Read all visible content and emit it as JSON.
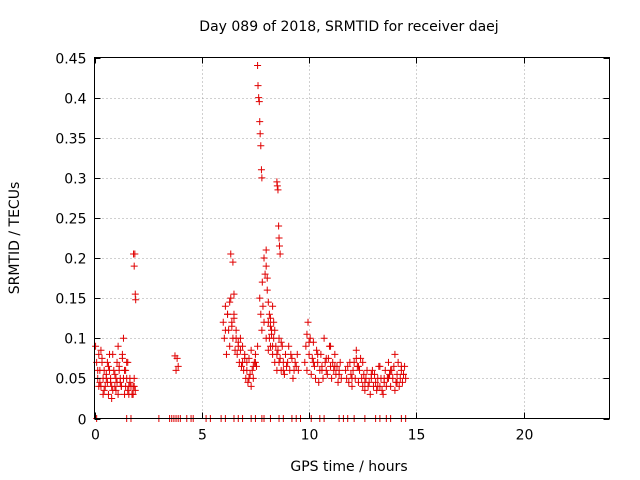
{
  "chart_data": {
    "type": "scatter",
    "title": "Day 089 of 2018, SRMTID for receiver daej",
    "xlabel": "GPS time / hours",
    "ylabel": "SRMTID / TECUs",
    "xlim": [
      0,
      24
    ],
    "ylim": [
      0,
      0.45
    ],
    "xticks": [
      0,
      5,
      10,
      15,
      20
    ],
    "yticks": [
      0,
      0.05,
      0.1,
      0.15,
      0.2,
      0.25,
      0.3,
      0.35,
      0.4,
      0.45
    ],
    "grid": true,
    "legend": "none",
    "marker": "+",
    "color": "#e00000",
    "series": [
      {
        "x": [
          0.05,
          0.1,
          0.15,
          0.2,
          0.25,
          0.3,
          0.35,
          0.4,
          0.45,
          0.5,
          0.55,
          0.6,
          0.65,
          0.7,
          0.75,
          0.8,
          0.85,
          0.9,
          0.95,
          1.0,
          1.05,
          1.1,
          1.15,
          1.2,
          1.25,
          1.3,
          1.35,
          1.4,
          1.45,
          1.5,
          1.55,
          1.6,
          1.65,
          1.7,
          1.75,
          1.8,
          1.85,
          1.9,
          0.15,
          0.25,
          0.35,
          0.45,
          0.55,
          0.65,
          0.75,
          0.85,
          0.95,
          1.05,
          1.15,
          1.25,
          1.35,
          1.45,
          1.55,
          1.65,
          1.75,
          1.85,
          0.2,
          0.4,
          0.6,
          0.8,
          1.0,
          1.2,
          1.4,
          1.6,
          1.8,
          0.3,
          0.7,
          1.1,
          1.3,
          1.5,
          1.82,
          1.85,
          1.88,
          1.9,
          1.92,
          3.75,
          3.8,
          3.85,
          3.9,
          6.0,
          6.05,
          6.1,
          6.15,
          6.2,
          6.25,
          6.3,
          6.35,
          6.4,
          6.45,
          6.5,
          6.55,
          6.6,
          6.65,
          6.7,
          6.75,
          6.8,
          6.85,
          6.9,
          6.95,
          7.0,
          7.05,
          7.1,
          7.15,
          7.2,
          7.25,
          7.3,
          7.35,
          7.4,
          7.45,
          7.5,
          7.55,
          7.6,
          6.1,
          6.3,
          6.5,
          6.7,
          6.9,
          7.1,
          7.3,
          7.5,
          6.2,
          6.4,
          6.6,
          6.8,
          7.0,
          7.2,
          7.4,
          6.35,
          6.45,
          6.5,
          7.6,
          7.62,
          7.65,
          7.68,
          7.7,
          7.72,
          7.75,
          7.78,
          7.8,
          7.82,
          7.7,
          7.75,
          7.8,
          7.85,
          7.9,
          7.95,
          8.0,
          8.05,
          8.1,
          8.15,
          8.2,
          8.25,
          8.3,
          8.35,
          8.4,
          8.45,
          8.5,
          8.55,
          8.6,
          8.65,
          8.7,
          8.75,
          8.8,
          8.85,
          8.9,
          8.95,
          9.0,
          9.05,
          9.1,
          9.15,
          9.2,
          9.25,
          9.3,
          9.35,
          9.4,
          9.45,
          9.5,
          7.9,
          8.0,
          8.1,
          8.2,
          8.3,
          8.4,
          8.5,
          8.6,
          8.7,
          8.8,
          8.0,
          8.05,
          8.1,
          8.15,
          8.2,
          8.25,
          8.3,
          8.35,
          8.5,
          8.52,
          8.55,
          8.58,
          8.6,
          8.62,
          8.65,
          9.8,
          9.85,
          9.9,
          9.95,
          10.0,
          10.05,
          10.1,
          10.15,
          10.2,
          10.25,
          10.3,
          10.35,
          10.4,
          10.45,
          10.5,
          10.55,
          10.6,
          10.65,
          10.7,
          10.75,
          10.8,
          10.85,
          10.9,
          10.95,
          11.0,
          11.05,
          11.1,
          11.15,
          11.2,
          11.25,
          11.3,
          11.35,
          11.4,
          11.45,
          11.5,
          9.9,
          10.0,
          10.2,
          10.4,
          10.6,
          10.8,
          11.0,
          11.2,
          11.4,
          11.7,
          11.75,
          11.8,
          11.85,
          11.9,
          11.95,
          12.0,
          12.05,
          12.1,
          12.15,
          12.2,
          12.25,
          12.3,
          12.35,
          12.4,
          12.45,
          12.5,
          12.55,
          12.6,
          12.65,
          12.7,
          12.75,
          12.8,
          12.85,
          12.9,
          12.95,
          13.0,
          13.05,
          13.1,
          13.15,
          13.2,
          13.25,
          13.3,
          13.35,
          13.4,
          13.45,
          13.5,
          13.55,
          13.6,
          13.65,
          13.7,
          13.75,
          13.8,
          13.85,
          13.9,
          13.95,
          14.0,
          14.05,
          14.1,
          14.15,
          14.2,
          14.25,
          14.3,
          14.35,
          14.4,
          14.45,
          14.5,
          12.0,
          12.3,
          12.6,
          12.9,
          13.2,
          13.5,
          13.8,
          14.1,
          14.4,
          12.2,
          12.5,
          13.3,
          13.7,
          14.0,
          14.3,
          0.1,
          1.5,
          1.7,
          3.0,
          3.5,
          3.6,
          3.7,
          3.8,
          3.9,
          4.0,
          4.3,
          4.5,
          4.6,
          5.2,
          5.4,
          5.9,
          6.1,
          6.5,
          6.7,
          6.9,
          7.3,
          7.5,
          7.8,
          7.9,
          8.2,
          8.6,
          8.8,
          9.2,
          9.4,
          9.6,
          10.1,
          10.5,
          10.7,
          11.4,
          11.6,
          11.8,
          12.1,
          12.6,
          13.1,
          13.3,
          13.6,
          13.8,
          14.3,
          14.5
        ],
        "y": [
          0.09,
          0.07,
          0.05,
          0.08,
          0.06,
          0.04,
          0.07,
          0.05,
          0.06,
          0.04,
          0.05,
          0.07,
          0.03,
          0.06,
          0.05,
          0.04,
          0.08,
          0.06,
          0.04,
          0.05,
          0.07,
          0.03,
          0.06,
          0.05,
          0.04,
          0.08,
          0.1,
          0.06,
          0.04,
          0.05,
          0.07,
          0.03,
          0.05,
          0.04,
          0.03,
          0.04,
          0.05,
          0.035,
          0.06,
          0.045,
          0.075,
          0.035,
          0.055,
          0.065,
          0.045,
          0.035,
          0.055,
          0.045,
          0.065,
          0.04,
          0.05,
          0.06,
          0.035,
          0.045,
          0.03,
          0.04,
          0.04,
          0.03,
          0.045,
          0.025,
          0.035,
          0.045,
          0.03,
          0.04,
          0.03,
          0.085,
          0.08,
          0.09,
          0.075,
          0.07,
          0.205,
          0.19,
          0.205,
          0.155,
          0.148,
          0.078,
          0.06,
          0.075,
          0.065,
          0.12,
          0.1,
          0.14,
          0.08,
          0.13,
          0.11,
          0.09,
          0.15,
          0.12,
          0.1,
          0.13,
          0.085,
          0.11,
          0.08,
          0.095,
          0.07,
          0.1,
          0.065,
          0.09,
          0.06,
          0.08,
          0.05,
          0.07,
          0.045,
          0.075,
          0.055,
          0.085,
          0.06,
          0.05,
          0.07,
          0.08,
          0.065,
          0.09,
          0.11,
          0.145,
          0.125,
          0.09,
          0.07,
          0.06,
          0.04,
          0.07,
          0.13,
          0.115,
          0.1,
          0.085,
          0.075,
          0.05,
          0.065,
          0.205,
          0.195,
          0.155,
          0.44,
          0.415,
          0.4,
          0.395,
          0.37,
          0.355,
          0.34,
          0.31,
          0.3,
          0.17,
          0.15,
          0.13,
          0.11,
          0.14,
          0.2,
          0.18,
          0.21,
          0.16,
          0.12,
          0.1,
          0.09,
          0.11,
          0.08,
          0.1,
          0.07,
          0.09,
          0.06,
          0.085,
          0.1,
          0.075,
          0.06,
          0.09,
          0.07,
          0.055,
          0.08,
          0.065,
          0.07,
          0.09,
          0.06,
          0.08,
          0.075,
          0.05,
          0.06,
          0.07,
          0.065,
          0.08,
          0.06,
          0.12,
          0.1,
          0.085,
          0.125,
          0.09,
          0.11,
          0.08,
          0.07,
          0.095,
          0.06,
          0.19,
          0.175,
          0.145,
          0.13,
          0.115,
          0.105,
          0.14,
          0.12,
          0.295,
          0.29,
          0.285,
          0.24,
          0.225,
          0.215,
          0.205,
          0.07,
          0.09,
          0.06,
          0.12,
          0.08,
          0.1,
          0.055,
          0.075,
          0.095,
          0.065,
          0.05,
          0.085,
          0.07,
          0.045,
          0.06,
          0.08,
          0.065,
          0.05,
          0.1,
          0.07,
          0.06,
          0.055,
          0.075,
          0.09,
          0.065,
          0.05,
          0.07,
          0.06,
          0.08,
          0.055,
          0.065,
          0.045,
          0.06,
          0.07,
          0.05,
          0.105,
          0.095,
          0.07,
          0.08,
          0.06,
          0.075,
          0.09,
          0.065,
          0.055,
          0.06,
          0.05,
          0.065,
          0.045,
          0.07,
          0.055,
          0.04,
          0.06,
          0.07,
          0.05,
          0.085,
          0.065,
          0.045,
          0.06,
          0.075,
          0.05,
          0.04,
          0.055,
          0.035,
          0.05,
          0.06,
          0.04,
          0.045,
          0.03,
          0.05,
          0.06,
          0.04,
          0.055,
          0.045,
          0.035,
          0.05,
          0.065,
          0.04,
          0.05,
          0.035,
          0.03,
          0.045,
          0.06,
          0.04,
          0.05,
          0.07,
          0.055,
          0.04,
          0.06,
          0.05,
          0.065,
          0.035,
          0.045,
          0.055,
          0.07,
          0.04,
          0.05,
          0.06,
          0.045,
          0.055,
          0.065,
          0.05,
          0.05,
          0.065,
          0.045,
          0.055,
          0.04,
          0.05,
          0.06,
          0.045,
          0.055,
          0.075,
          0.07,
          0.065,
          0.05,
          0.08,
          0.065,
          0,
          0,
          0,
          0,
          0,
          0,
          0,
          0,
          0,
          0,
          0,
          0,
          0,
          0,
          0,
          0,
          0,
          0,
          0,
          0,
          0,
          0,
          0,
          0,
          0,
          0,
          0,
          0,
          0,
          0,
          0,
          0,
          0,
          0,
          0,
          0,
          0,
          0,
          0,
          0,
          0,
          0,
          0,
          0
        ]
      }
    ]
  }
}
